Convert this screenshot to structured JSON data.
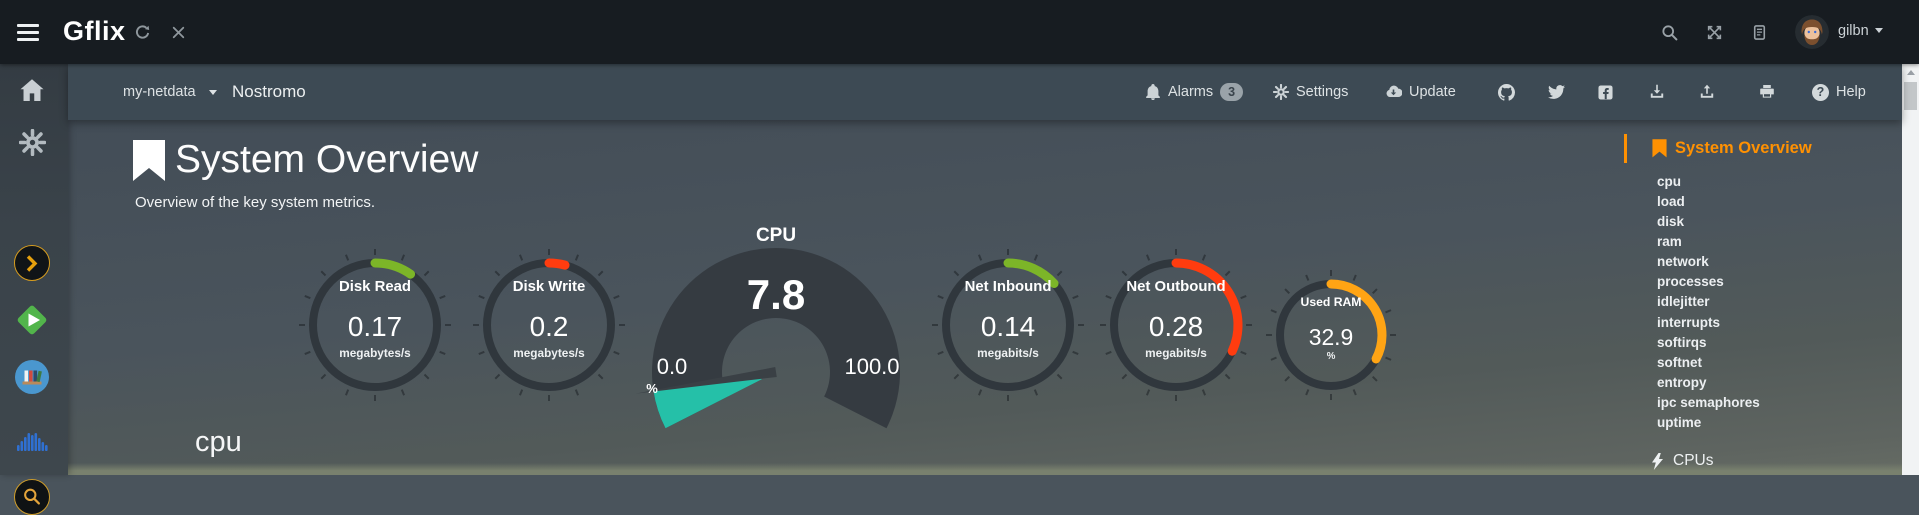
{
  "topbar": {
    "brand": "Gflix",
    "user": "gilbn"
  },
  "navbar": {
    "server": "my-netdata",
    "hostname": "Nostromo",
    "alarms_label": "Alarms",
    "alarms_count": "3",
    "settings_label": "Settings",
    "update_label": "Update",
    "help_label": "Help"
  },
  "page": {
    "title": "System Overview",
    "subtitle": "Overview of the key system metrics.",
    "section_heading": "cpu"
  },
  "chart_data": {
    "type": "gauge-dashboard",
    "gauges": [
      {
        "id": "disk-read",
        "label": "Disk Read",
        "value": "0.17",
        "unit": "megabytes/s",
        "arc_deg": 35,
        "color_key": "green"
      },
      {
        "id": "disk-write",
        "label": "Disk Write",
        "value": "0.2",
        "unit": "megabytes/s",
        "arc_deg": 15,
        "color_key": "red"
      },
      {
        "id": "net-inbound",
        "label": "Net Inbound",
        "value": "0.14",
        "unit": "megabits/s",
        "arc_deg": 48,
        "color_key": "green"
      },
      {
        "id": "net-outbound",
        "label": "Net Outbound",
        "value": "0.28",
        "unit": "megabits/s",
        "arc_deg": 115,
        "color_key": "red"
      },
      {
        "id": "used-ram",
        "label": "Used RAM",
        "value": "32.9",
        "unit": "%",
        "arc_deg": 118,
        "color_key": "orange"
      }
    ],
    "cpu_gauge": {
      "label": "CPU",
      "value": "7.8",
      "min": "0.0",
      "max": "100.0",
      "unit": "%",
      "percent": 7.8
    }
  },
  "menu": {
    "active_label": "System Overview",
    "items": [
      "cpu",
      "load",
      "disk",
      "ram",
      "network",
      "processes",
      "idlejitter",
      "interrupts",
      "softirqs",
      "softnet",
      "entropy",
      "ipc semaphores",
      "uptime"
    ],
    "next_section": "CPUs"
  },
  "icons": {
    "topbar": [
      "hamburger-menu",
      "refresh",
      "close",
      "search",
      "fullscreen",
      "news",
      "avatar",
      "caret-down"
    ],
    "navbar": [
      "bell",
      "gear",
      "cloud-download",
      "github",
      "twitter",
      "facebook",
      "download",
      "upload",
      "printer",
      "question-circle",
      "caret-down"
    ],
    "sidebar": [
      "home",
      "gear",
      "plex",
      "emby",
      "library-books",
      "audio-waveform",
      "search-circle"
    ],
    "page": [
      "bookmark"
    ],
    "menu": [
      "bookmark",
      "lightning-bolt"
    ]
  },
  "colors": {
    "green": "#7cb528",
    "red": "#ff3c0f",
    "orange": "#ffa414",
    "teal": "#25c0a8",
    "menu_accent": "#ff9102",
    "badge_bg": "#9aa3a9",
    "gauge_ring": "#30373d"
  }
}
